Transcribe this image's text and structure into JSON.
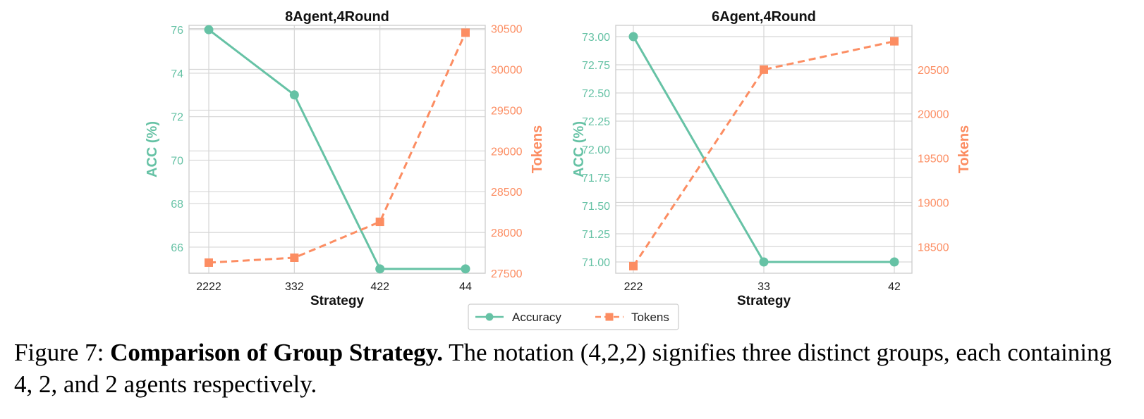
{
  "colors": {
    "accuracy": "#66c2a5",
    "tokens": "#fc8d62",
    "grid": "#d6d6d6",
    "frame": "#cfcfcf",
    "text": "#222222"
  },
  "legend": {
    "accuracy_label": "Accuracy",
    "tokens_label": "Tokens"
  },
  "chart_data": [
    {
      "type": "line",
      "title": "8Agent,4Round",
      "xlabel": "Strategy",
      "ylabel_left": "ACC (%)",
      "ylabel_right": "Tokens",
      "categories": [
        "2222",
        "332",
        "422",
        "44"
      ],
      "ylim_left": [
        64.8,
        76.2
      ],
      "yticks_left": [
        66,
        68,
        70,
        72,
        74,
        76
      ],
      "ytick_labels_left": [
        "66",
        "68",
        "70",
        "72",
        "74",
        "76"
      ],
      "ylim_right": [
        27500,
        30540
      ],
      "yticks_right": [
        27500,
        28000,
        28500,
        29000,
        29500,
        30000,
        30500
      ],
      "ytick_labels_right": [
        "27500",
        "28000",
        "28500",
        "29000",
        "29500",
        "30000",
        "30500"
      ],
      "series": [
        {
          "name": "Accuracy",
          "axis": "left",
          "values": [
            76,
            73,
            65,
            65
          ]
        },
        {
          "name": "Tokens",
          "axis": "right",
          "values": [
            27630,
            27690,
            28130,
            30450
          ]
        }
      ]
    },
    {
      "type": "line",
      "title": "6Agent,4Round",
      "xlabel": "Strategy",
      "ylabel_left": "ACC (%)",
      "ylabel_right": "Tokens",
      "categories": [
        "222",
        "33",
        "42"
      ],
      "ylim_left": [
        70.9,
        73.1
      ],
      "yticks_left": [
        71.0,
        71.25,
        71.5,
        71.75,
        72.0,
        72.25,
        72.5,
        72.75,
        73.0
      ],
      "ytick_labels_left": [
        "71.00",
        "71.25",
        "71.50",
        "71.75",
        "72.00",
        "72.25",
        "72.50",
        "72.75",
        "73.00"
      ],
      "ylim_right": [
        18200,
        21000
      ],
      "yticks_right": [
        18500,
        19000,
        19500,
        20000,
        20500
      ],
      "ytick_labels_right": [
        "18500",
        "19000",
        "19500",
        "20000",
        "20500"
      ],
      "series": [
        {
          "name": "Accuracy",
          "axis": "left",
          "values": [
            73.0,
            71.0,
            71.0
          ]
        },
        {
          "name": "Tokens",
          "axis": "right",
          "values": [
            18280,
            20500,
            20820
          ]
        }
      ]
    }
  ],
  "caption": {
    "prefix": "Figure 7: ",
    "bold": "Comparison of Group Strategy.",
    "rest": " The notation (4,2,2) signifies three distinct groups, each containing 4, 2, and 2 agents respectively."
  }
}
